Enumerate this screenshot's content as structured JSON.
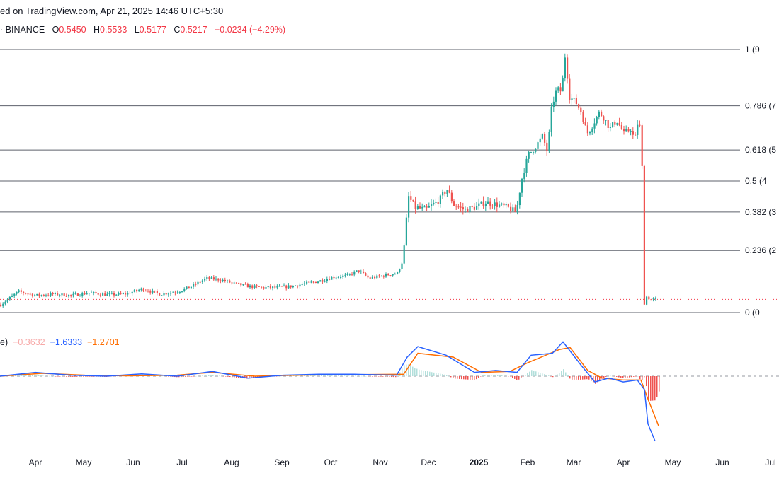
{
  "header": {
    "published": "ed on TradingView.com, Apr 21, 2025 14:46 UTC+5:30",
    "symbol_prefix": "· BINANCE",
    "ohlc": [
      {
        "label": "O",
        "value": "0.5450"
      },
      {
        "label": "H",
        "value": "0.5533"
      },
      {
        "label": "L",
        "value": "0.5177"
      },
      {
        "label": "C",
        "value": "0.5217"
      },
      {
        "label": "",
        "value": "−0.0234 (−4.29%)"
      }
    ]
  },
  "macd_legend": {
    "prefix": "e)",
    "histogram": "−0.3632",
    "macd": "−1.6333",
    "signal": "−1.2701"
  },
  "colors": {
    "up": "#26a69a",
    "down": "#ef5350",
    "macd_line": "#2962ff",
    "signal_line": "#ff6d00",
    "hist_pos": "#b2dfdb",
    "hist_neg": "#ef5350",
    "fib_line": "#5d606b",
    "last_price_line": "#f23645"
  },
  "chart_data": [
    {
      "type": "candlestick",
      "fib_levels": [
        {
          "ratio": 1,
          "label": "1 (9"
        },
        {
          "ratio": 0.786,
          "label": "0.786 (7"
        },
        {
          "ratio": 0.618,
          "label": "0.618 (5"
        },
        {
          "ratio": 0.5,
          "label": "0.5 (4"
        },
        {
          "ratio": 0.382,
          "label": "0.382 (3"
        },
        {
          "ratio": 0.236,
          "label": "0.236 (2"
        },
        {
          "ratio": 0,
          "label": "0 (0"
        }
      ],
      "x_ticks": [
        "Apr",
        "May",
        "Jun",
        "Jul",
        "Aug",
        "Sep",
        "Oct",
        "Nov",
        "Dec",
        "2025",
        "Feb",
        "Mar",
        "Apr",
        "May",
        "Jun",
        "Jul"
      ],
      "price_path_fib": [
        [
          0,
          0.03
        ],
        [
          25,
          0.08
        ],
        [
          50,
          0.065
        ],
        [
          75,
          0.07
        ],
        [
          100,
          0.065
        ],
        [
          125,
          0.075
        ],
        [
          150,
          0.068
        ],
        [
          175,
          0.07
        ],
        [
          200,
          0.09
        ],
        [
          225,
          0.07
        ],
        [
          250,
          0.08
        ],
        [
          270,
          0.1
        ],
        [
          290,
          0.13
        ],
        [
          310,
          0.125
        ],
        [
          330,
          0.11
        ],
        [
          350,
          0.1
        ],
        [
          370,
          0.095
        ],
        [
          390,
          0.095
        ],
        [
          410,
          0.1
        ],
        [
          430,
          0.11
        ],
        [
          450,
          0.12
        ],
        [
          470,
          0.135
        ],
        [
          490,
          0.14
        ],
        [
          505,
          0.16
        ],
        [
          520,
          0.13
        ],
        [
          540,
          0.14
        ],
        [
          560,
          0.15
        ],
        [
          568,
          0.2
        ],
        [
          572,
          0.33
        ],
        [
          576,
          0.44
        ],
        [
          585,
          0.4
        ],
        [
          600,
          0.39
        ],
        [
          610,
          0.41
        ],
        [
          620,
          0.43
        ],
        [
          630,
          0.47
        ],
        [
          640,
          0.41
        ],
        [
          655,
          0.39
        ],
        [
          670,
          0.4
        ],
        [
          685,
          0.42
        ],
        [
          700,
          0.41
        ],
        [
          715,
          0.4
        ],
        [
          728,
          0.38
        ],
        [
          735,
          0.5
        ],
        [
          745,
          0.6
        ],
        [
          755,
          0.63
        ],
        [
          765,
          0.67
        ],
        [
          772,
          0.61
        ],
        [
          778,
          0.78
        ],
        [
          785,
          0.85
        ],
        [
          792,
          0.84
        ],
        [
          797,
          0.98
        ],
        [
          803,
          0.82
        ],
        [
          812,
          0.8
        ],
        [
          820,
          0.76
        ],
        [
          828,
          0.68
        ],
        [
          835,
          0.71
        ],
        [
          845,
          0.76
        ],
        [
          852,
          0.74
        ],
        [
          860,
          0.7
        ],
        [
          870,
          0.73
        ],
        [
          880,
          0.68
        ],
        [
          890,
          0.7
        ],
        [
          895,
          0.65
        ],
        [
          900,
          0.73
        ],
        [
          905,
          0.68
        ],
        [
          908,
          0.03
        ],
        [
          912,
          0.06
        ],
        [
          918,
          0.05
        ],
        [
          927,
          0.05
        ]
      ],
      "last_price_fib": 0.05
    },
    {
      "type": "macd",
      "macd_path": [
        [
          0,
          0
        ],
        [
          50,
          0.2
        ],
        [
          100,
          0.05
        ],
        [
          150,
          0
        ],
        [
          200,
          0.12
        ],
        [
          250,
          0
        ],
        [
          300,
          0.25
        ],
        [
          350,
          -0.1
        ],
        [
          400,
          0.05
        ],
        [
          450,
          0.1
        ],
        [
          500,
          0.1
        ],
        [
          560,
          0.05
        ],
        [
          575,
          1.0
        ],
        [
          590,
          1.55
        ],
        [
          630,
          1.1
        ],
        [
          670,
          0.2
        ],
        [
          700,
          0.3
        ],
        [
          730,
          0.2
        ],
        [
          750,
          1.1
        ],
        [
          780,
          1.2
        ],
        [
          795,
          1.8
        ],
        [
          820,
          0.6
        ],
        [
          840,
          -0.3
        ],
        [
          860,
          -0.1
        ],
        [
          880,
          -0.3
        ],
        [
          900,
          -0.2
        ],
        [
          910,
          -0.7
        ],
        [
          915,
          -2.5
        ],
        [
          925,
          -3.4
        ]
      ],
      "signal_path": [
        [
          0,
          0
        ],
        [
          60,
          0.15
        ],
        [
          120,
          0.05
        ],
        [
          180,
          0.02
        ],
        [
          250,
          0.05
        ],
        [
          300,
          0.2
        ],
        [
          360,
          0
        ],
        [
          420,
          0.05
        ],
        [
          500,
          0.08
        ],
        [
          570,
          0.1
        ],
        [
          590,
          1.2
        ],
        [
          640,
          1.0
        ],
        [
          680,
          0.2
        ],
        [
          720,
          0.25
        ],
        [
          745,
          0.7
        ],
        [
          790,
          1.4
        ],
        [
          805,
          1.5
        ],
        [
          830,
          0.3
        ],
        [
          850,
          -0.1
        ],
        [
          880,
          -0.2
        ],
        [
          905,
          -0.2
        ],
        [
          915,
          -1.2
        ],
        [
          930,
          -2.6
        ]
      ]
    }
  ]
}
